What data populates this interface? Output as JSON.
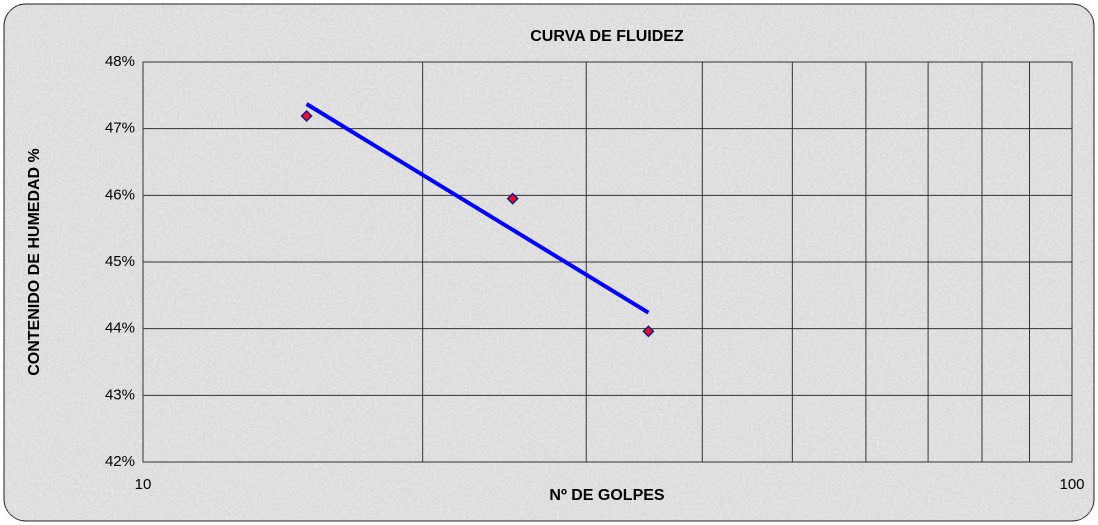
{
  "chart_data": {
    "type": "scatter",
    "title": "CURVA DE FLUIDEZ",
    "x_label": "Nº DE GOLPES",
    "y_label": "CONTENIDO DE HUMEDAD %",
    "x_log": true,
    "xlim": [
      10,
      100
    ],
    "xticks": [
      10,
      100
    ],
    "x_minor_grid": [
      20,
      30,
      40,
      50,
      60,
      70,
      80,
      90
    ],
    "ylim": [
      42,
      48
    ],
    "yticks": [
      {
        "value": 42,
        "label": "42%"
      },
      {
        "value": 43,
        "label": "43%"
      },
      {
        "value": 44,
        "label": "44%"
      },
      {
        "value": 45,
        "label": "45%"
      },
      {
        "value": 46,
        "label": "46%"
      },
      {
        "value": 47,
        "label": "47%"
      },
      {
        "value": 48,
        "label": "48%"
      }
    ],
    "grid": true,
    "points": {
      "x": [
        15,
        25,
        35
      ],
      "values": [
        47.19,
        45.95,
        43.96
      ],
      "color": "#e8102a",
      "edge_color": "#1a1a80"
    },
    "trendline": {
      "x": [
        15,
        35
      ],
      "values": [
        47.37,
        44.24
      ],
      "color": "#0000ff"
    }
  }
}
